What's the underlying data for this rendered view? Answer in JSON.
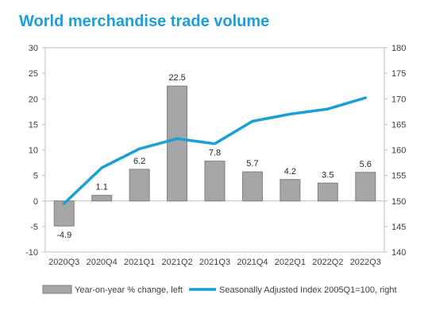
{
  "chart_data": {
    "type": "bar",
    "title": "World merchandise trade volume",
    "categories": [
      "2020Q3",
      "2020Q4",
      "2021Q1",
      "2021Q2",
      "2021Q3",
      "2021Q4",
      "2022Q1",
      "2022Q2",
      "2022Q3"
    ],
    "series": [
      {
        "name": "Year-on-year % change, left",
        "type": "bar",
        "axis": "left",
        "values": [
          -4.9,
          1.1,
          6.2,
          22.5,
          7.8,
          5.7,
          4.2,
          3.5,
          5.6
        ],
        "data_labels": [
          "-4.9",
          "1.1",
          "6.2",
          "22.5",
          "7.8",
          "5.7",
          "4.2",
          "3.5",
          "5.6"
        ]
      },
      {
        "name": "Seasonally Adjusted Index 2005Q1=100, right",
        "type": "line",
        "axis": "right",
        "values": [
          149.5,
          156.5,
          160.2,
          162.2,
          161.2,
          165.6,
          167.0,
          168.0,
          170.2
        ]
      }
    ],
    "y_left": {
      "ylim": [
        -10,
        30
      ],
      "ticks": [
        "30",
        "25",
        "20",
        "15",
        "10",
        "5",
        "0",
        "-5",
        "-10"
      ]
    },
    "y_right": {
      "ylim": [
        140,
        180
      ],
      "ticks": [
        "180",
        "175",
        "170",
        "165",
        "160",
        "155",
        "150",
        "145",
        "140"
      ]
    },
    "grid": false,
    "legend_position": "bottom",
    "colors": {
      "bar_fill": "#a6a6a6",
      "bar_stroke": "#7f7f7f",
      "line": "#1aa0d8",
      "axis": "#bfbfbf",
      "title": "#1aa0d8"
    }
  }
}
